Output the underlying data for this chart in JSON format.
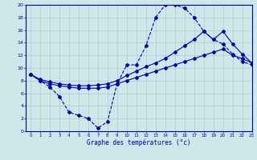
{
  "title": "Graphe des températures (°c)",
  "bg_color": "#cce8e8",
  "grid_color": "#aacccc",
  "line_color": "#0000aa",
  "xlim": [
    -0.5,
    23
  ],
  "ylim": [
    0,
    20
  ],
  "xticks": [
    0,
    1,
    2,
    3,
    4,
    5,
    6,
    7,
    8,
    9,
    10,
    11,
    12,
    13,
    14,
    15,
    16,
    17,
    18,
    19,
    20,
    21,
    22,
    23
  ],
  "yticks": [
    0,
    2,
    4,
    6,
    8,
    10,
    12,
    14,
    16,
    18,
    20
  ],
  "series": [
    {
      "x": [
        0,
        1,
        2,
        3,
        4,
        5,
        6,
        7,
        8,
        9,
        10,
        11,
        12,
        13,
        14,
        15,
        16,
        17,
        18,
        19,
        20,
        21,
        22,
        23
      ],
      "y": [
        9,
        8,
        7,
        5.5,
        3,
        2.5,
        2,
        0.5,
        1.5,
        7.5,
        10.5,
        10.5,
        13.5,
        18,
        20,
        20,
        19.5,
        18,
        15.8,
        14.5,
        13.8,
        12.2,
        11.0,
        10.5
      ],
      "linestyle": "--",
      "linewidth": 0.8,
      "marker": "D",
      "markersize": 2.0
    },
    {
      "x": [
        0,
        1,
        2,
        3,
        4,
        5,
        6,
        7,
        8,
        9,
        10,
        11,
        12,
        13,
        14,
        15,
        16,
        17,
        18,
        19,
        20,
        21,
        22,
        23
      ],
      "y": [
        9,
        8.2,
        7.8,
        7.5,
        7.3,
        7.2,
        7.2,
        7.3,
        7.5,
        8.0,
        8.8,
        9.5,
        10.2,
        10.8,
        11.5,
        12.5,
        13.5,
        14.5,
        15.8,
        14.5,
        15.8,
        13.8,
        12.2,
        10.8
      ],
      "linestyle": "-",
      "linewidth": 0.8,
      "marker": "D",
      "markersize": 2.0
    },
    {
      "x": [
        0,
        1,
        2,
        3,
        4,
        5,
        6,
        7,
        8,
        9,
        10,
        11,
        12,
        13,
        14,
        15,
        16,
        17,
        18,
        19,
        20,
        21,
        22,
        23
      ],
      "y": [
        9,
        8.0,
        7.5,
        7.2,
        7.0,
        6.8,
        6.8,
        6.8,
        7.0,
        7.5,
        8.0,
        8.5,
        9.0,
        9.5,
        10.0,
        10.5,
        11.0,
        11.5,
        12.0,
        12.5,
        13.0,
        12.0,
        11.5,
        10.8
      ],
      "linestyle": "-",
      "linewidth": 0.8,
      "marker": "D",
      "markersize": 2.0
    }
  ]
}
